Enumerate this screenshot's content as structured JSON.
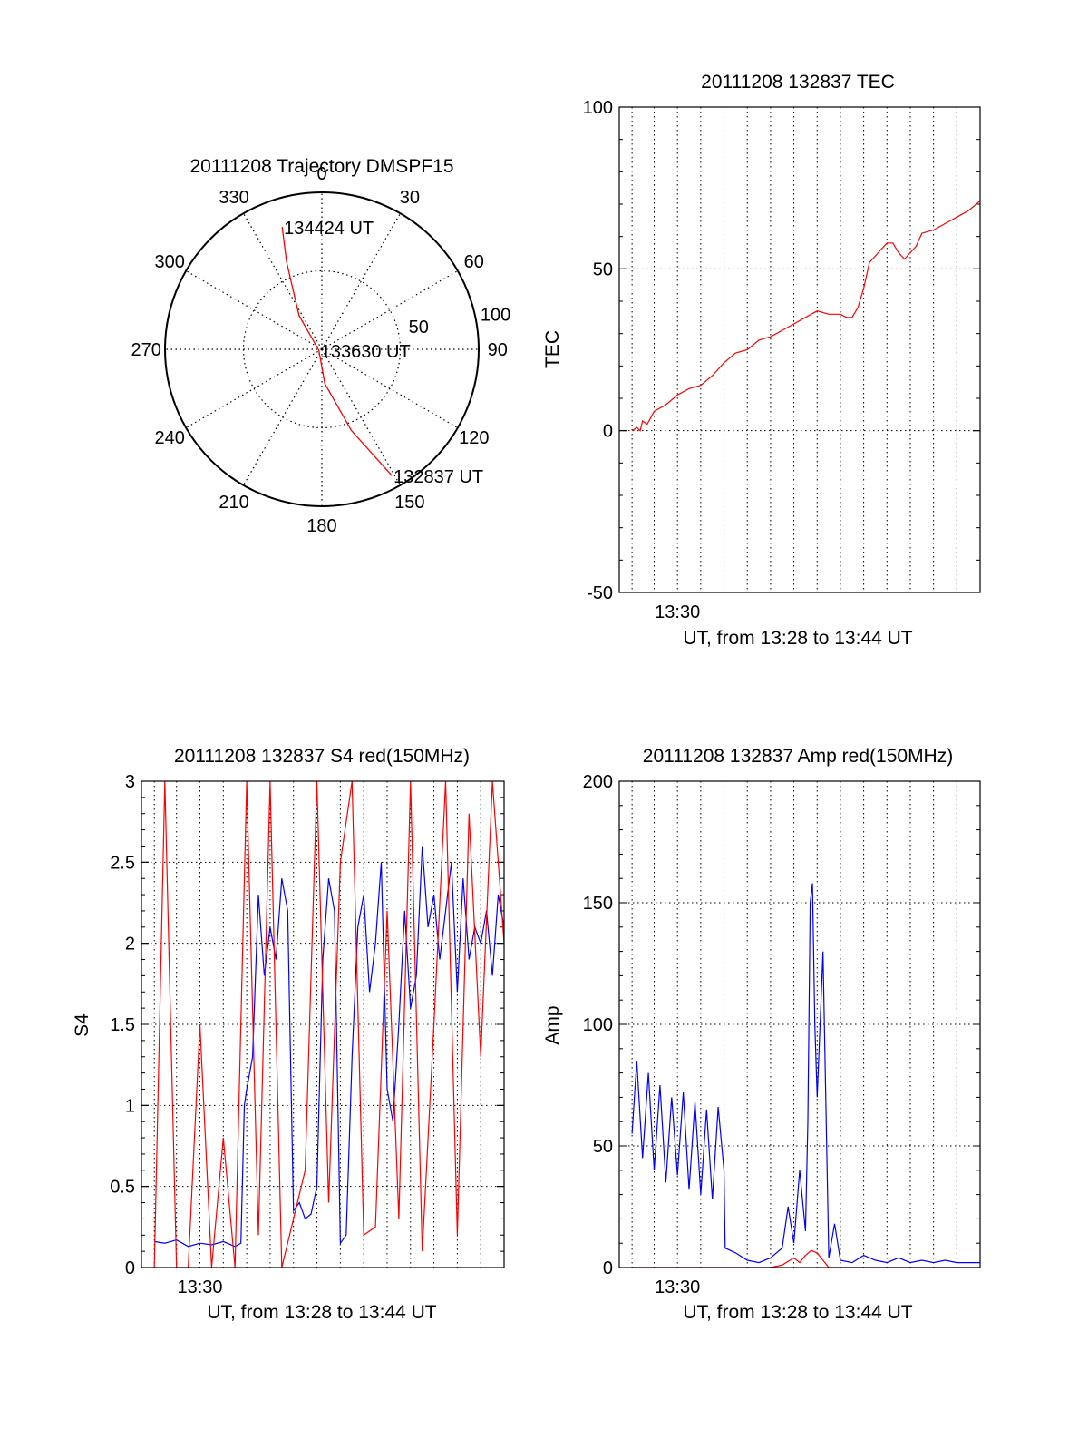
{
  "chart_data": [
    {
      "type": "polar",
      "title": "20111208 Trajectory DMSPF15",
      "angle_labels": [
        "0",
        "30",
        "60",
        "90",
        "120",
        "150",
        "180",
        "210",
        "240",
        "270",
        "300",
        "330"
      ],
      "radial_ticks": [
        50,
        100
      ],
      "radial_labels": [
        "50",
        "100"
      ],
      "rlim": [
        0,
        100
      ],
      "grid": true,
      "series": [
        {
          "color": "#ff0000",
          "points": [
            {
              "az": 151,
              "zen": 92
            },
            {
              "az": 160,
              "zen": 55
            },
            {
              "az": 175,
              "zen": 22
            },
            {
              "az": 250,
              "zen": 2
            },
            {
              "az": 326,
              "zen": 26
            },
            {
              "az": 338,
              "zen": 60
            },
            {
              "az": 342,
              "zen": 82
            }
          ]
        }
      ],
      "annotations": [
        {
          "text": "134424 UT",
          "az": 342,
          "zen": 82
        },
        {
          "text": "133630 UT",
          "az": 250,
          "zen": 2
        },
        {
          "text": "132837 UT",
          "az": 151,
          "zen": 92
        }
      ]
    },
    {
      "type": "line",
      "title": "20111208 132837 TEC",
      "ylabel": "TEC",
      "xlabel": "UT, from 13:28 to 13:44 UT",
      "x_tick_labels": [
        {
          "x": 13.5,
          "label": "13:30"
        }
      ],
      "xlim": [
        13.45,
        13.76
      ],
      "ylim": [
        -50,
        100
      ],
      "y_ticks": [
        -50,
        0,
        50,
        100
      ],
      "y_tick_labels": [
        "-50",
        "0",
        "50",
        "100"
      ],
      "x_minor_grid": [
        13.461,
        13.48,
        13.5,
        13.52,
        13.54,
        13.56,
        13.58,
        13.6,
        13.62,
        13.64,
        13.66,
        13.68,
        13.7,
        13.72,
        13.74
      ],
      "grid": true,
      "series": [
        {
          "color": "#ff0000",
          "x": [
            13.461,
            13.465,
            13.468,
            13.47,
            13.474,
            13.48,
            13.49,
            13.5,
            13.51,
            13.52,
            13.53,
            13.54,
            13.55,
            13.56,
            13.57,
            13.58,
            13.59,
            13.6,
            13.61,
            13.62,
            13.63,
            13.635,
            13.64,
            13.645,
            13.65,
            13.655,
            13.66,
            13.665,
            13.67,
            13.675,
            13.68,
            13.685,
            13.69,
            13.695,
            13.7,
            13.705,
            13.71,
            13.72,
            13.73,
            13.74,
            13.75,
            13.76
          ],
          "y": [
            0,
            1,
            0,
            3,
            2,
            6,
            8,
            11,
            13,
            14,
            17,
            21,
            24,
            25,
            28,
            29,
            31,
            33,
            35,
            37,
            36,
            36,
            36,
            35,
            35,
            38,
            44,
            52,
            54,
            56,
            58,
            58,
            55,
            53,
            55,
            57,
            61,
            62,
            64,
            66,
            68,
            71
          ]
        }
      ]
    },
    {
      "type": "line",
      "title": "20111208 132837 S4 red(150MHz)",
      "ylabel": "S4",
      "xlabel": "UT, from 13:28 to 13:44 UT",
      "x_tick_labels": [
        {
          "x": 13.5,
          "label": "13:30"
        }
      ],
      "xlim": [
        13.45,
        13.76
      ],
      "ylim": [
        0,
        3
      ],
      "y_ticks": [
        0,
        0.5,
        1,
        1.5,
        2,
        2.5,
        3
      ],
      "y_tick_labels": [
        "0",
        "0.5",
        "1",
        "1.5",
        "2",
        "2.5",
        "3"
      ],
      "x_minor_grid": [
        13.461,
        13.48,
        13.5,
        13.52,
        13.54,
        13.56,
        13.58,
        13.6,
        13.62,
        13.64,
        13.66,
        13.68,
        13.7,
        13.72,
        13.74
      ],
      "grid": true,
      "series": [
        {
          "color": "#0000ff",
          "x": [
            13.461,
            13.47,
            13.48,
            13.49,
            13.5,
            13.51,
            13.52,
            13.53,
            13.535,
            13.538,
            13.54,
            13.545,
            13.55,
            13.555,
            13.56,
            13.565,
            13.57,
            13.575,
            13.58,
            13.585,
            13.59,
            13.595,
            13.6,
            13.605,
            13.61,
            13.615,
            13.62,
            13.625,
            13.63,
            13.635,
            13.64,
            13.645,
            13.65,
            13.655,
            13.66,
            13.665,
            13.67,
            13.675,
            13.68,
            13.685,
            13.69,
            13.695,
            13.7,
            13.705,
            13.71,
            13.715,
            13.72,
            13.725,
            13.73,
            13.735,
            13.74,
            13.745,
            13.75,
            13.755,
            13.76
          ],
          "y": [
            0.16,
            0.15,
            0.17,
            0.13,
            0.15,
            0.14,
            0.16,
            0.13,
            0.15,
            1.0,
            1.1,
            1.3,
            2.3,
            1.8,
            2.1,
            1.9,
            2.4,
            2.2,
            0.35,
            0.4,
            0.3,
            0.33,
            0.5,
            1.9,
            2.4,
            2.2,
            0.15,
            0.2,
            1.3,
            2.1,
            2.3,
            1.7,
            2.0,
            2.5,
            1.1,
            0.9,
            1.5,
            2.2,
            1.6,
            1.8,
            2.6,
            2.1,
            2.3,
            1.9,
            2.2,
            2.5,
            1.7,
            2.4,
            1.9,
            2.1,
            2.0,
            2.2,
            1.8,
            2.3,
            2.1
          ]
        },
        {
          "color": "#ff0000",
          "x": [
            13.461,
            13.47,
            13.48,
            13.49,
            13.5,
            13.51,
            13.52,
            13.53,
            13.54,
            13.55,
            13.56,
            13.57,
            13.58,
            13.59,
            13.6,
            13.61,
            13.62,
            13.63,
            13.64,
            13.65,
            13.66,
            13.67,
            13.68,
            13.69,
            13.7,
            13.71,
            13.72,
            13.73,
            13.74,
            13.75,
            13.76
          ],
          "y": [
            0,
            3,
            0,
            0,
            1.5,
            0,
            0.8,
            0,
            3,
            0.2,
            3,
            0,
            0.3,
            0.6,
            3,
            0.4,
            2.5,
            3,
            0.2,
            0.25,
            2.2,
            0.3,
            3,
            0.1,
            1.5,
            3,
            0.2,
            2.8,
            1.3,
            3,
            2.0
          ]
        }
      ]
    },
    {
      "type": "line",
      "title": "20111208 132837 Amp red(150MHz)",
      "ylabel": "Amp",
      "xlabel": "UT, from 13:28 to 13:44 UT",
      "x_tick_labels": [
        {
          "x": 13.5,
          "label": "13:30"
        }
      ],
      "xlim": [
        13.45,
        13.76
      ],
      "ylim": [
        0,
        200
      ],
      "y_ticks": [
        0,
        50,
        100,
        150,
        200
      ],
      "y_tick_labels": [
        "0",
        "50",
        "100",
        "150",
        "200"
      ],
      "x_minor_grid": [
        13.461,
        13.48,
        13.5,
        13.52,
        13.54,
        13.56,
        13.58,
        13.6,
        13.62,
        13.64,
        13.66,
        13.68,
        13.7,
        13.72,
        13.74
      ],
      "grid": true,
      "series": [
        {
          "color": "#0000ff",
          "x": [
            13.461,
            13.465,
            13.47,
            13.475,
            13.48,
            13.485,
            13.49,
            13.495,
            13.5,
            13.505,
            13.51,
            13.515,
            13.52,
            13.525,
            13.53,
            13.535,
            13.54,
            13.541,
            13.55,
            13.56,
            13.57,
            13.58,
            13.59,
            13.595,
            13.6,
            13.605,
            13.61,
            13.612,
            13.614,
            13.616,
            13.618,
            13.62,
            13.625,
            13.63,
            13.635,
            13.64,
            13.65,
            13.66,
            13.67,
            13.68,
            13.69,
            13.7,
            13.71,
            13.72,
            13.73,
            13.74,
            13.75,
            13.76
          ],
          "y": [
            55,
            85,
            45,
            80,
            40,
            75,
            35,
            70,
            38,
            72,
            32,
            68,
            30,
            65,
            28,
            66,
            40,
            8,
            6,
            3,
            2,
            4,
            8,
            25,
            10,
            40,
            15,
            60,
            150,
            158,
            100,
            70,
            130,
            4,
            18,
            3,
            2,
            5,
            3,
            2,
            4,
            2,
            3,
            2,
            3,
            2,
            2,
            2
          ]
        },
        {
          "color": "#ff0000",
          "x": [
            13.461,
            13.5,
            13.54,
            13.58,
            13.59,
            13.6,
            13.605,
            13.61,
            13.615,
            13.62,
            13.625,
            13.63,
            13.66,
            13.7,
            13.76
          ],
          "y": [
            0,
            0,
            0,
            0,
            1,
            4,
            2,
            5,
            7,
            6,
            3,
            0,
            0,
            0,
            0
          ]
        }
      ]
    }
  ]
}
